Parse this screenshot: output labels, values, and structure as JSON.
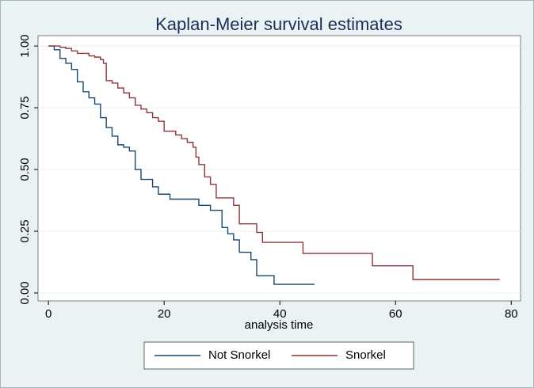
{
  "chart_data": {
    "type": "line",
    "step": "post",
    "title": "Kaplan-Meier survival estimates",
    "x_label": "analysis time",
    "series": [
      {
        "name": "Not Snorkel",
        "color": "#1a476f",
        "x": [
          0,
          1,
          2,
          3,
          4,
          5,
          6,
          7,
          8,
          9,
          10,
          11,
          12,
          13,
          14,
          15,
          16,
          18,
          19,
          21,
          26,
          28,
          30,
          31,
          32,
          33,
          35,
          36,
          39,
          46
        ],
        "values": [
          1.0,
          0.985,
          0.95,
          0.93,
          0.905,
          0.855,
          0.815,
          0.79,
          0.765,
          0.71,
          0.67,
          0.635,
          0.6,
          0.59,
          0.575,
          0.5,
          0.46,
          0.43,
          0.4,
          0.38,
          0.355,
          0.335,
          0.265,
          0.24,
          0.215,
          0.165,
          0.135,
          0.07,
          0.035,
          0.035
        ]
      },
      {
        "name": "Snorkel",
        "color": "#90353b",
        "x": [
          0,
          2,
          3,
          4,
          5,
          7,
          8,
          9,
          9.5,
          10,
          11,
          12,
          13,
          14,
          15,
          16,
          17,
          18,
          19,
          20,
          22,
          23,
          24,
          25,
          25.5,
          26,
          27,
          28,
          29,
          32,
          33,
          36,
          37,
          44,
          56,
          63,
          78
        ],
        "values": [
          1.0,
          0.995,
          0.99,
          0.98,
          0.97,
          0.96,
          0.955,
          0.945,
          0.93,
          0.86,
          0.85,
          0.83,
          0.81,
          0.79,
          0.76,
          0.745,
          0.73,
          0.71,
          0.695,
          0.655,
          0.64,
          0.625,
          0.61,
          0.59,
          0.55,
          0.52,
          0.47,
          0.44,
          0.385,
          0.355,
          0.28,
          0.245,
          0.205,
          0.16,
          0.11,
          0.055,
          0.055
        ]
      }
    ],
    "xlim": [
      -1.8,
      81.6
    ],
    "xticks": [
      0,
      20,
      40,
      60,
      80
    ],
    "ylim": [
      -0.032,
      1.042
    ],
    "yticks": [
      {
        "value": 0,
        "label": "0.00"
      },
      {
        "value": 0.25,
        "label": "0.25"
      },
      {
        "value": 0.5,
        "label": "0.50"
      },
      {
        "value": 0.75,
        "label": "0.75"
      },
      {
        "value": 1,
        "label": "1.00"
      }
    ],
    "grid": true,
    "legend": "bottom"
  }
}
